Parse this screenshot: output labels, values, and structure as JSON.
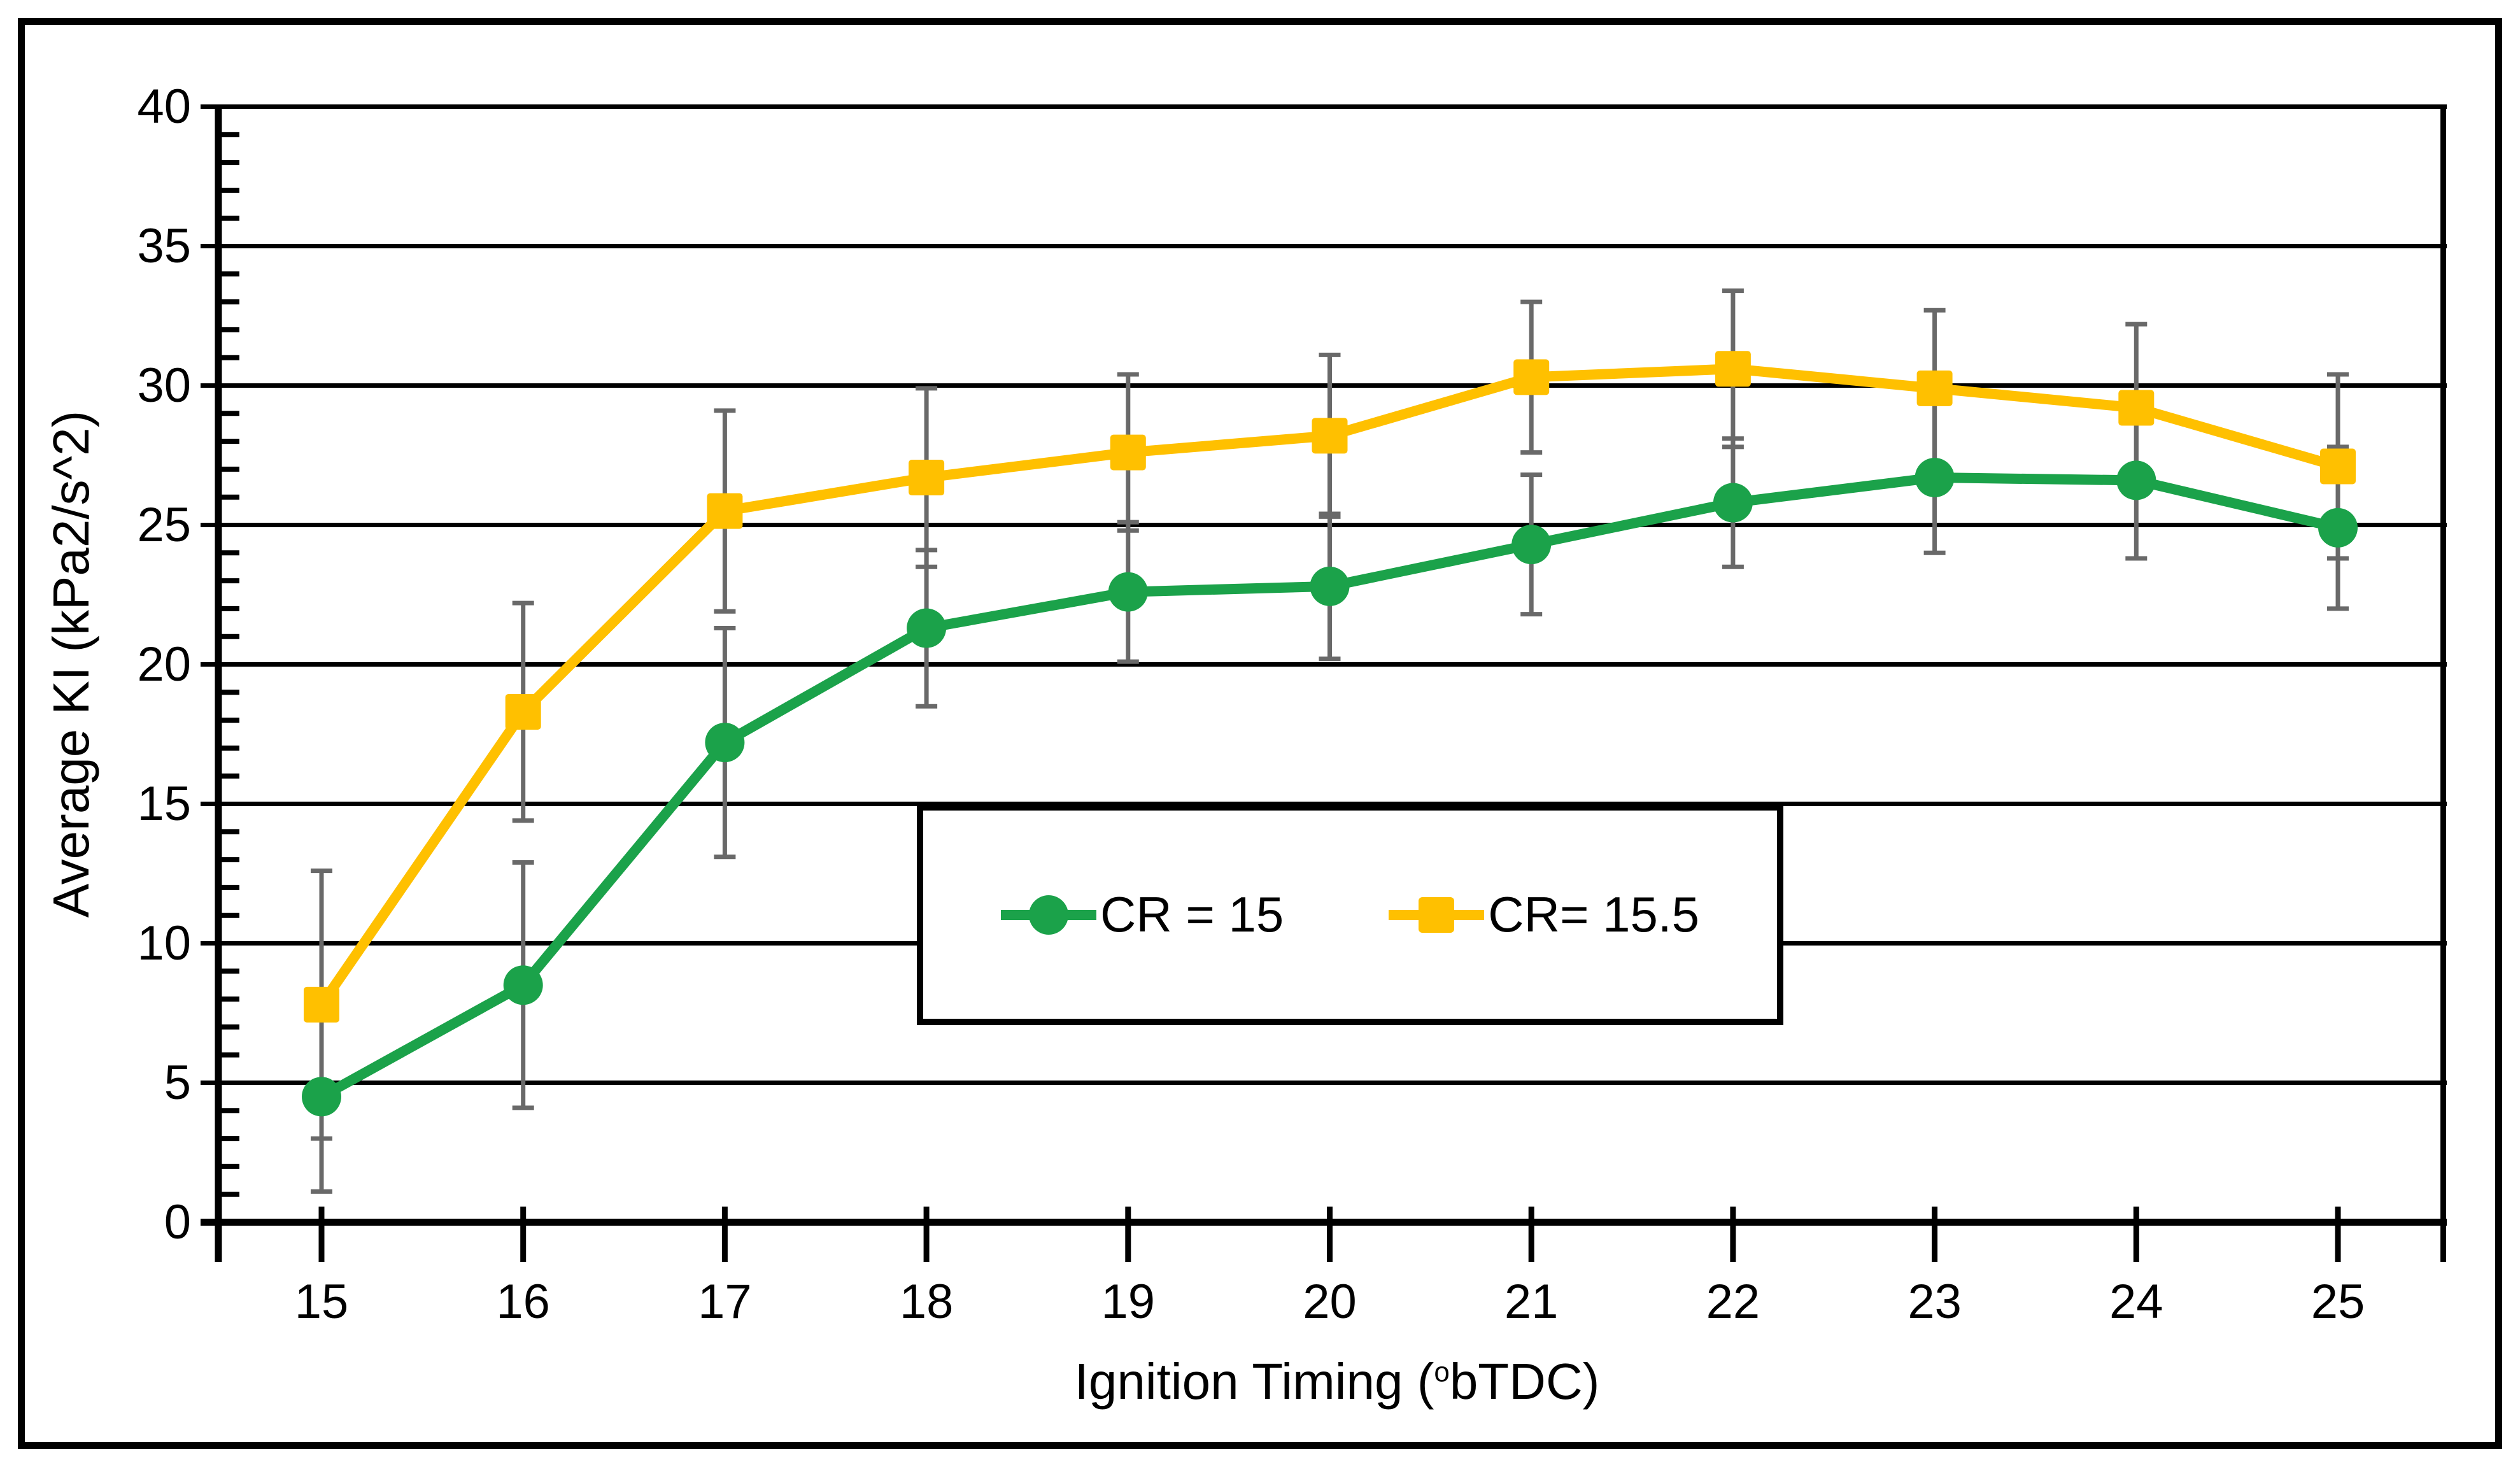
{
  "figure": {
    "background_color": "#FFFFFF",
    "outer_border_color": "#000000",
    "axis_color": "#000000",
    "gridline_color": "#000000",
    "error_bar_color": "#696969"
  },
  "labels": {
    "y_axis_title": "Average KI (kPa2/s^2)",
    "x_axis_title": {
      "prefix": "Ignition Timing (",
      "sup": "o",
      "suffix": "bTDC)",
      "full": "Ignition Timing (obTDC)"
    },
    "legend": [
      {
        "label": "CR = 15"
      },
      {
        "label": "CR= 15.5"
      }
    ]
  },
  "chart_data": {
    "type": "line",
    "title": "",
    "xlabel": "Ignition Timing (obTDC)",
    "ylabel": "Average KI (kPa2/s^2)",
    "x": [
      15,
      16,
      17,
      18,
      19,
      20,
      21,
      22,
      23,
      24,
      25
    ],
    "x_ticks": [
      15,
      16,
      17,
      18,
      19,
      20,
      21,
      22,
      23,
      24,
      25
    ],
    "y_ticks": [
      0,
      5,
      10,
      15,
      20,
      25,
      30,
      35,
      40
    ],
    "ylim": [
      0,
      40
    ],
    "grid": "horizontal-major",
    "y_minor_tick_step": 1,
    "legend_position": "inside-center-lower-box",
    "error_bar_color": "#696969",
    "series": [
      {
        "name": "CR = 15",
        "color": "#1BA24A",
        "marker": "circle",
        "values": [
          4.5,
          8.5,
          17.2,
          21.3,
          22.6,
          22.8,
          24.3,
          25.8,
          26.7,
          26.6,
          24.9
        ],
        "error": [
          3.4,
          4.4,
          4.1,
          2.8,
          2.5,
          2.6,
          2.5,
          2.3,
          2.7,
          2.8,
          2.9
        ]
      },
      {
        "name": "CR= 15.5",
        "color": "#FFC000",
        "marker": "square",
        "values": [
          7.8,
          18.3,
          25.5,
          26.7,
          27.6,
          28.2,
          30.3,
          30.6,
          29.9,
          29.2,
          27.1
        ],
        "error": [
          4.8,
          3.9,
          3.6,
          3.2,
          2.8,
          2.9,
          2.7,
          2.8,
          2.8,
          3.0,
          3.3
        ]
      }
    ]
  }
}
